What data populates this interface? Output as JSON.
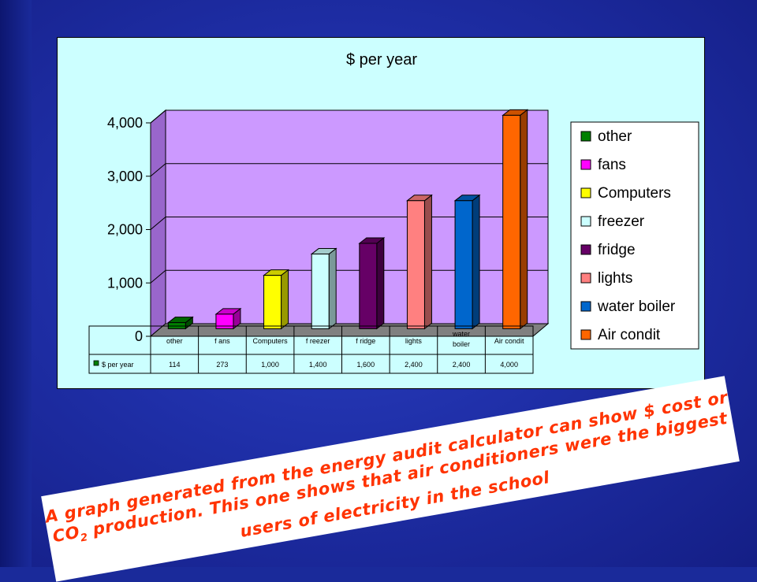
{
  "chart_data": {
    "type": "bar",
    "title": "$ per year",
    "categories": [
      "other",
      "fans",
      "Computers",
      "freezer",
      "fridge",
      "lights",
      "water boiler",
      "Air condit"
    ],
    "table_categories": [
      "other",
      "f ans",
      "Computers",
      "f reezer",
      "f ridge",
      "lights",
      "water boiler",
      "Air condit"
    ],
    "series": [
      {
        "name": "$ per year",
        "values": [
          114,
          273,
          1000,
          1400,
          1600,
          2400,
          2400,
          4000
        ]
      }
    ],
    "value_labels": [
      "114",
      "273",
      "1,000",
      "1,400",
      "1,600",
      "2,400",
      "2,400",
      "4,000"
    ],
    "yticks": [
      "0",
      "1,000",
      "2,000",
      "3,000",
      "4,000"
    ],
    "ylim": [
      0,
      4000
    ],
    "grid": true,
    "legend_position": "right",
    "legend": [
      "other",
      "fans",
      "Computers",
      "freezer",
      "fridge",
      "lights",
      "water boiler",
      "Air condit"
    ],
    "colors": [
      "#008000",
      "#ff00ff",
      "#ffff00",
      "#ccffff",
      "#660066",
      "#ff8080",
      "#0066cc",
      "#ff6600"
    ],
    "wall_color": "#cc99ff"
  },
  "caption": {
    "part1": "A graph generated from the energy audit calculator can show $ cost or CO",
    "sub": "2",
    "part2": " production. This one shows that air conditioners were the biggest users of electricity in the school"
  }
}
